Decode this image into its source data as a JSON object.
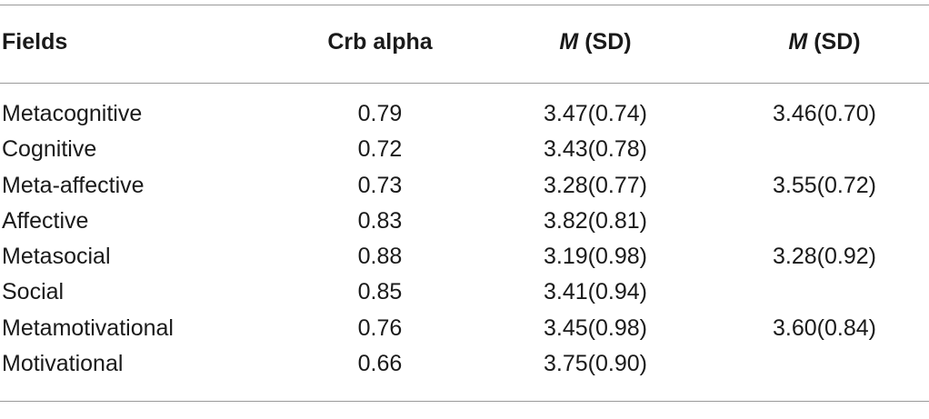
{
  "table": {
    "headers": {
      "fields": "Fields",
      "alpha": "Crb alpha",
      "m1_italic": "M",
      "m1_rest": " (SD)",
      "m2_italic": "M",
      "m2_rest": " (SD)"
    },
    "rows": [
      {
        "field": "Metacognitive",
        "alpha": "0.79",
        "m1": "3.47(0.74)",
        "m2": "3.46(0.70)"
      },
      {
        "field": "Cognitive",
        "alpha": "0.72",
        "m1": "3.43(0.78)",
        "m2": ""
      },
      {
        "field": "Meta-affective",
        "alpha": "0.73",
        "m1": "3.28(0.77)",
        "m2": "3.55(0.72)"
      },
      {
        "field": "Affective",
        "alpha": "0.83",
        "m1": "3.82(0.81)",
        "m2": ""
      },
      {
        "field": "Metasocial",
        "alpha": "0.88",
        "m1": "3.19(0.98)",
        "m2": "3.28(0.92)"
      },
      {
        "field": "Social",
        "alpha": "0.85",
        "m1": "3.41(0.94)",
        "m2": ""
      },
      {
        "field": "Metamotivational",
        "alpha": "0.76",
        "m1": "3.45(0.98)",
        "m2": "3.60(0.84)"
      },
      {
        "field": "Motivational",
        "alpha": "0.66",
        "m1": "3.75(0.90)",
        "m2": ""
      }
    ]
  }
}
